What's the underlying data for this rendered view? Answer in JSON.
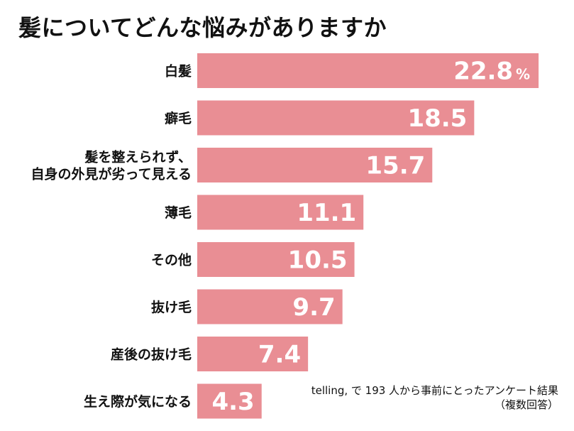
{
  "chart_data": {
    "type": "bar",
    "orientation": "horizontal",
    "title": "髪についてどんな悩みがありますか",
    "categories": [
      [
        "白髪"
      ],
      [
        "癖毛"
      ],
      [
        "髪を整えられず、",
        "自身の外見が劣って見える"
      ],
      [
        "薄毛"
      ],
      [
        "その他"
      ],
      [
        "抜け毛"
      ],
      [
        "産後の抜け毛"
      ],
      [
        "生え際が気になる"
      ]
    ],
    "values": [
      22.8,
      18.5,
      15.7,
      11.1,
      10.5,
      9.7,
      7.4,
      4.3
    ],
    "value_labels": [
      "22.8",
      "18.5",
      "15.7",
      "11.1",
      "10.5",
      "9.7",
      "7.4",
      "4.3"
    ],
    "unit": "%",
    "bar_color": "#e98e94",
    "grid": false,
    "legend": false
  },
  "note": {
    "line1": "telling, で 193 人から事前にとったアンケート結果",
    "line2": "（複数回答）"
  }
}
